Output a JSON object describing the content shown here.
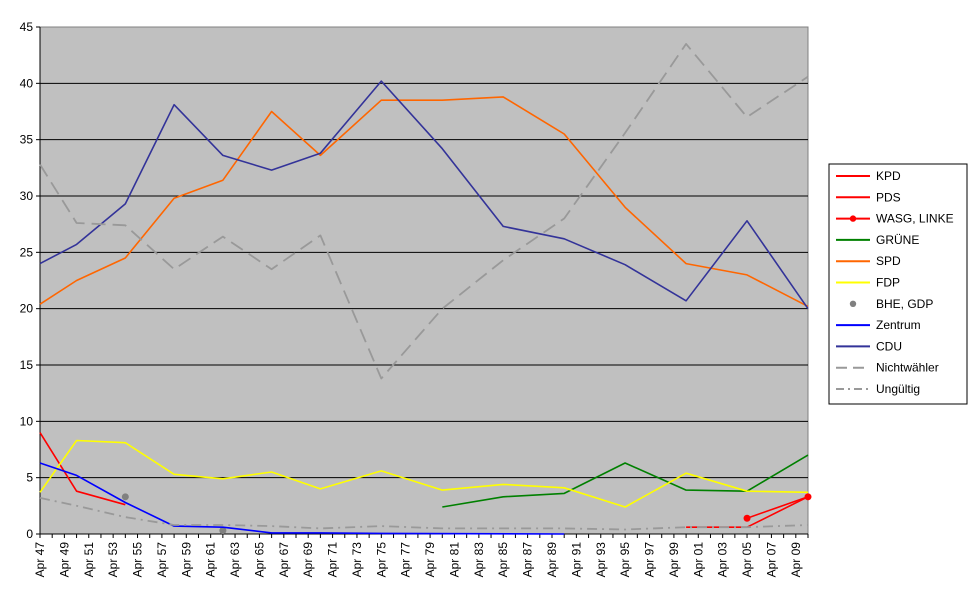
{
  "chart_data": {
    "type": "line",
    "title": "",
    "xlabel": "",
    "ylabel": "",
    "ylim": [
      0,
      45
    ],
    "yticks": [
      "0",
      "5",
      "10",
      "15",
      "20",
      "25",
      "30",
      "35",
      "40",
      "45"
    ],
    "xlim": [
      1947,
      2010
    ],
    "xticks": [
      {
        "value": 1947,
        "label": "Apr 47"
      },
      {
        "value": 1949,
        "label": "Apr 49"
      },
      {
        "value": 1951,
        "label": "Apr 51"
      },
      {
        "value": 1953,
        "label": "Apr 53"
      },
      {
        "value": 1955,
        "label": "Apr 55"
      },
      {
        "value": 1957,
        "label": "Apr 57"
      },
      {
        "value": 1959,
        "label": "Apr 59"
      },
      {
        "value": 1961,
        "label": "Apr 61"
      },
      {
        "value": 1963,
        "label": "Apr 63"
      },
      {
        "value": 1965,
        "label": "Apr 65"
      },
      {
        "value": 1967,
        "label": "Apr 67"
      },
      {
        "value": 1969,
        "label": "Apr 69"
      },
      {
        "value": 1971,
        "label": "Apr 71"
      },
      {
        "value": 1973,
        "label": "Apr 73"
      },
      {
        "value": 1975,
        "label": "Apr 75"
      },
      {
        "value": 1977,
        "label": "Apr 77"
      },
      {
        "value": 1979,
        "label": "Apr 79"
      },
      {
        "value": 1981,
        "label": "Apr 81"
      },
      {
        "value": 1983,
        "label": "Apr 83"
      },
      {
        "value": 1985,
        "label": "Apr 85"
      },
      {
        "value": 1987,
        "label": "Apr 87"
      },
      {
        "value": 1989,
        "label": "Apr 89"
      },
      {
        "value": 1991,
        "label": "Apr 91"
      },
      {
        "value": 1993,
        "label": "Apr 93"
      },
      {
        "value": 1995,
        "label": "Apr 95"
      },
      {
        "value": 1997,
        "label": "Apr 97"
      },
      {
        "value": 1999,
        "label": "Apr 99"
      },
      {
        "value": 2001,
        "label": "Apr 01"
      },
      {
        "value": 2003,
        "label": "Apr 03"
      },
      {
        "value": 2005,
        "label": "Apr 05"
      },
      {
        "value": 2007,
        "label": "Apr 07"
      },
      {
        "value": 2009,
        "label": "Apr 09"
      }
    ],
    "grid": true,
    "legend_position": "right",
    "plot_background": "#c0c0c0",
    "series": [
      {
        "name": "KPD",
        "color": "#ff0000",
        "style": "solid",
        "marker": "none",
        "points": [
          [
            1947,
            9.0
          ],
          [
            1950,
            3.8
          ],
          [
            1954,
            2.6
          ]
        ]
      },
      {
        "name": "PDS",
        "color": "#ff0000",
        "style": "solid",
        "marker": "none",
        "points": [
          [
            2000,
            0.6
          ],
          [
            2005,
            0.6
          ],
          [
            2010,
            3.3
          ]
        ]
      },
      {
        "name": "WASG, LINKE",
        "color": "#ff0000",
        "style": "solid",
        "marker": "circle",
        "points": [
          [
            2005,
            1.4
          ],
          [
            2010,
            3.3
          ]
        ]
      },
      {
        "name": "GRÜNE",
        "color": "#008000",
        "style": "solid",
        "marker": "none",
        "points": [
          [
            1980,
            2.4
          ],
          [
            1985,
            3.3
          ],
          [
            1990,
            3.6
          ],
          [
            1995,
            6.3
          ],
          [
            2000,
            3.9
          ],
          [
            2005,
            3.8
          ],
          [
            2010,
            7.0
          ]
        ]
      },
      {
        "name": "SPD",
        "color": "#ff6600",
        "style": "solid",
        "marker": "none",
        "points": [
          [
            1947,
            20.4
          ],
          [
            1950,
            22.5
          ],
          [
            1954,
            24.5
          ],
          [
            1958,
            29.8
          ],
          [
            1962,
            31.4
          ],
          [
            1966,
            37.5
          ],
          [
            1970,
            33.6
          ],
          [
            1975,
            38.5
          ],
          [
            1980,
            38.5
          ],
          [
            1985,
            38.8
          ],
          [
            1990,
            35.5
          ],
          [
            1995,
            29.0
          ],
          [
            2000,
            24.0
          ],
          [
            2005,
            23.0
          ],
          [
            2010,
            20.2
          ]
        ]
      },
      {
        "name": "FDP",
        "color": "#ffff00",
        "style": "solid",
        "marker": "none",
        "points": [
          [
            1947,
            3.7
          ],
          [
            1950,
            8.3
          ],
          [
            1954,
            8.1
          ],
          [
            1958,
            5.3
          ],
          [
            1962,
            4.9
          ],
          [
            1966,
            5.5
          ],
          [
            1970,
            4.0
          ],
          [
            1975,
            5.6
          ],
          [
            1980,
            3.9
          ],
          [
            1985,
            4.4
          ],
          [
            1990,
            4.1
          ],
          [
            1995,
            2.4
          ],
          [
            2000,
            5.4
          ],
          [
            2005,
            3.8
          ],
          [
            2010,
            3.7
          ]
        ]
      },
      {
        "name": "BHE, GDP",
        "color": "#808080",
        "style": "none",
        "marker": "circle",
        "points": [
          [
            1954,
            3.3
          ],
          [
            1962,
            0.3
          ]
        ]
      },
      {
        "name": "Zentrum",
        "color": "#0000ff",
        "style": "solid",
        "marker": "none",
        "points": [
          [
            1947,
            6.3
          ],
          [
            1950,
            5.2
          ],
          [
            1954,
            2.8
          ],
          [
            1958,
            0.7
          ],
          [
            1962,
            0.6
          ],
          [
            1966,
            0.1
          ],
          [
            1970,
            0.1
          ],
          [
            1975,
            0.05
          ],
          [
            1990,
            0.0
          ]
        ]
      },
      {
        "name": "CDU",
        "color": "#333399",
        "style": "solid",
        "marker": "none",
        "points": [
          [
            1947,
            24.0
          ],
          [
            1950,
            25.7
          ],
          [
            1954,
            29.3
          ],
          [
            1958,
            38.1
          ],
          [
            1962,
            33.6
          ],
          [
            1966,
            32.3
          ],
          [
            1970,
            33.8
          ],
          [
            1975,
            40.2
          ],
          [
            1980,
            34.2
          ],
          [
            1985,
            27.3
          ],
          [
            1990,
            26.2
          ],
          [
            1995,
            23.9
          ],
          [
            2000,
            20.7
          ],
          [
            2005,
            27.8
          ],
          [
            2010,
            20.0
          ]
        ]
      },
      {
        "name": "Nichtwähler",
        "color": "#999999",
        "style": "dash",
        "marker": "none",
        "points": [
          [
            1947,
            32.8
          ],
          [
            1950,
            27.6
          ],
          [
            1954,
            27.4
          ],
          [
            1958,
            23.5
          ],
          [
            1962,
            26.4
          ],
          [
            1966,
            23.5
          ],
          [
            1970,
            26.5
          ],
          [
            1975,
            13.8
          ],
          [
            1980,
            20.0
          ],
          [
            1985,
            24.3
          ],
          [
            1990,
            28.0
          ],
          [
            1995,
            35.6
          ],
          [
            2000,
            43.5
          ],
          [
            2005,
            37.0
          ],
          [
            2010,
            40.6
          ]
        ]
      },
      {
        "name": "Ungültig",
        "color": "#999999",
        "style": "dashdot",
        "marker": "none",
        "points": [
          [
            1947,
            3.2
          ],
          [
            1950,
            2.5
          ],
          [
            1954,
            1.5
          ],
          [
            1958,
            0.8
          ],
          [
            1962,
            0.8
          ],
          [
            1966,
            0.7
          ],
          [
            1970,
            0.5
          ],
          [
            1975,
            0.7
          ],
          [
            1980,
            0.5
          ],
          [
            1985,
            0.5
          ],
          [
            1990,
            0.5
          ],
          [
            1995,
            0.4
          ],
          [
            2000,
            0.6
          ],
          [
            2005,
            0.6
          ],
          [
            2010,
            0.8
          ]
        ]
      }
    ]
  }
}
